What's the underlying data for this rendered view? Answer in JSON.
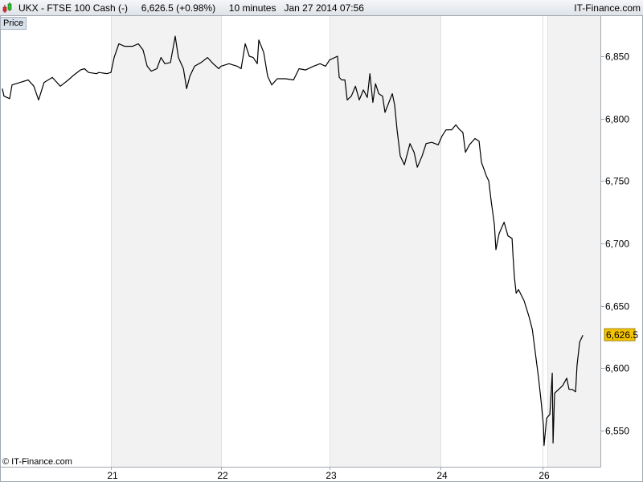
{
  "header": {
    "symbol_title": "UKX - FTSE 100 Cash (-)",
    "last_price": "6,626.5 (+0.98%)",
    "interval": "10 minutes",
    "datetime": "Jan 27 2014 07:56",
    "brand": "IT-Finance.com",
    "icon": "candlestick-chart-icon"
  },
  "panel_label": "Price",
  "copyright": "© IT-Finance.com",
  "colors": {
    "line": "#000000",
    "shade": "#f2f2f2",
    "last_price_badge": "#f5c400",
    "axis": "#a0a8b0"
  },
  "chart_data": {
    "type": "line",
    "title": "",
    "xlabel": "",
    "ylabel": "",
    "ylim": [
      6518,
      6882
    ],
    "grid": "vertical day separators, alternate days shaded",
    "x_tick_labels": [
      "21",
      "22",
      "23",
      "24",
      "26"
    ],
    "y_tick_labels": [
      "6,850",
      "6,800",
      "6,750",
      "6,700",
      "6,650",
      "6,600",
      "6,550"
    ],
    "y_ticks": [
      6850,
      6800,
      6750,
      6700,
      6650,
      6600,
      6550
    ],
    "last_value_label": "6,626.5",
    "last_value": 6626.5,
    "series": [
      {
        "points": [
          [
            "20 08:07",
            6824
          ],
          [
            "20 08:15",
            6818
          ],
          [
            "20 08:41",
            6816
          ],
          [
            "20 08:52",
            6827
          ],
          [
            "20 09:30",
            6829
          ],
          [
            "20 10:07",
            6831
          ],
          [
            "20 10:33",
            6826
          ],
          [
            "20 10:55",
            6815
          ],
          [
            "20 11:21",
            6829
          ],
          [
            "20 11:59",
            6833
          ],
          [
            "20 12:36",
            6826
          ],
          [
            "20 13:13",
            6831
          ],
          [
            "20 13:32",
            6834
          ],
          [
            "20 14:09",
            6839
          ],
          [
            "20 14:28",
            6840
          ],
          [
            "20 14:47",
            6837
          ],
          [
            "20 15:24",
            6836
          ],
          [
            "20 15:35",
            6837
          ],
          [
            "20 16:12",
            6836
          ],
          [
            "21 08:00",
            6837
          ],
          [
            "21 08:15",
            6849
          ],
          [
            "21 08:37",
            6860
          ],
          [
            "21 09:03",
            6858
          ],
          [
            "21 09:41",
            6858
          ],
          [
            "21 10:07",
            6860
          ],
          [
            "21 10:29",
            6855
          ],
          [
            "21 10:48",
            6842
          ],
          [
            "21 11:07",
            6838
          ],
          [
            "21 11:33",
            6840
          ],
          [
            "21 11:52",
            6849
          ],
          [
            "21 12:10",
            6844
          ],
          [
            "21 12:36",
            6845
          ],
          [
            "21 12:58",
            6866
          ],
          [
            "21 13:13",
            6849
          ],
          [
            "21 13:36",
            6840
          ],
          [
            "21 13:51",
            6824
          ],
          [
            "21 14:06",
            6834
          ],
          [
            "21 14:28",
            6842
          ],
          [
            "21 14:58",
            6845
          ],
          [
            "21 15:28",
            6849
          ],
          [
            "21 15:54",
            6844
          ],
          [
            "21 16:20",
            6840
          ],
          [
            "22 08:00",
            6842
          ],
          [
            "22 08:37",
            6844
          ],
          [
            "22 09:15",
            6842
          ],
          [
            "22 09:33",
            6840
          ],
          [
            "22 09:52",
            6860
          ],
          [
            "22 10:11",
            6850
          ],
          [
            "22 10:29",
            6849
          ],
          [
            "22 10:48",
            6844
          ],
          [
            "22 10:55",
            6863
          ],
          [
            "22 11:18",
            6853
          ],
          [
            "22 11:36",
            6834
          ],
          [
            "22 11:55",
            6827
          ],
          [
            "22 12:21",
            6832
          ],
          [
            "22 12:58",
            6832
          ],
          [
            "22 13:36",
            6831
          ],
          [
            "22 14:02",
            6840
          ],
          [
            "22 14:32",
            6839
          ],
          [
            "22 15:09",
            6842
          ],
          [
            "22 15:39",
            6844
          ],
          [
            "22 16:05",
            6842
          ],
          [
            "23 08:00",
            6847
          ],
          [
            "23 08:37",
            6850
          ],
          [
            "23 08:45",
            6833
          ],
          [
            "23 08:56",
            6831
          ],
          [
            "23 09:11",
            6831
          ],
          [
            "23 09:22",
            6815
          ],
          [
            "23 09:41",
            6818
          ],
          [
            "23 10:00",
            6826
          ],
          [
            "23 10:18",
            6815
          ],
          [
            "23 10:37",
            6823
          ],
          [
            "23 10:55",
            6817
          ],
          [
            "23 11:07",
            6836
          ],
          [
            "23 11:21",
            6813
          ],
          [
            "23 11:33",
            6828
          ],
          [
            "23 11:48",
            6820
          ],
          [
            "23 12:06",
            6818
          ],
          [
            "23 12:17",
            6805
          ],
          [
            "23 12:51",
            6820
          ],
          [
            "23 13:02",
            6811
          ],
          [
            "23 13:13",
            6791
          ],
          [
            "23 13:28",
            6770
          ],
          [
            "23 13:47",
            6763
          ],
          [
            "23 14:13",
            6780
          ],
          [
            "23 14:32",
            6773
          ],
          [
            "23 14:47",
            6761
          ],
          [
            "23 15:09",
            6770
          ],
          [
            "23 15:28",
            6780
          ],
          [
            "23 15:54",
            6781
          ],
          [
            "23 16:24",
            6779
          ],
          [
            "24 08:07",
            6786
          ],
          [
            "24 08:26",
            6791
          ],
          [
            "24 08:52",
            6791
          ],
          [
            "24 09:11",
            6795
          ],
          [
            "24 09:30",
            6791
          ],
          [
            "24 09:44",
            6789
          ],
          [
            "24 09:56",
            6773
          ],
          [
            "24 10:14",
            6779
          ],
          [
            "24 10:40",
            6784
          ],
          [
            "24 10:59",
            6782
          ],
          [
            "24 11:10",
            6765
          ],
          [
            "24 11:33",
            6754
          ],
          [
            "24 11:44",
            6750
          ],
          [
            "24 11:55",
            6734
          ],
          [
            "24 12:10",
            6715
          ],
          [
            "24 12:17",
            6695
          ],
          [
            "24 12:32",
            6708
          ],
          [
            "24 12:55",
            6717
          ],
          [
            "24 13:13",
            6706
          ],
          [
            "24 13:32",
            6704
          ],
          [
            "24 13:36",
            6691
          ],
          [
            "24 13:43",
            6673
          ],
          [
            "24 13:51",
            6660
          ],
          [
            "24 14:02",
            6663
          ],
          [
            "24 14:28",
            6654
          ],
          [
            "24 14:51",
            6641
          ],
          [
            "24 15:06",
            6631
          ],
          [
            "24 15:20",
            6612
          ],
          [
            "24 15:35",
            6592
          ],
          [
            "24 15:47",
            6573
          ],
          [
            "26 08:04",
            6554
          ],
          [
            "26 08:07",
            6538
          ],
          [
            "26 08:19",
            6560
          ],
          [
            "26 08:34",
            6563
          ],
          [
            "26 08:45",
            6596
          ],
          [
            "26 08:49",
            6540
          ],
          [
            "26 08:56",
            6580
          ],
          [
            "26 09:15",
            6583
          ],
          [
            "26 09:33",
            6586
          ],
          [
            "26 09:52",
            6592
          ],
          [
            "26 10:03",
            6583
          ],
          [
            "26 10:18",
            6583
          ],
          [
            "26 10:33",
            6581
          ],
          [
            "26 10:40",
            6602
          ],
          [
            "26 10:52",
            6621
          ],
          [
            "26 11:07",
            6626.5
          ]
        ]
      }
    ]
  }
}
